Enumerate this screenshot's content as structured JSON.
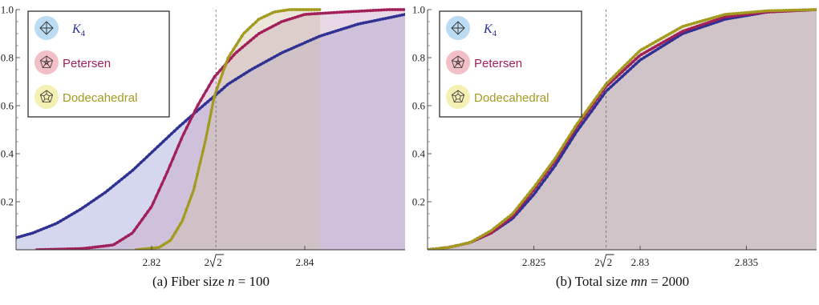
{
  "colors": {
    "K4": "#2f3193",
    "Petersen": "#a2205a",
    "Dodecahedral": "#a39a1f",
    "K4_fill": "#9a9fd6",
    "Petersen_fill": "#c8a2c2",
    "Dodecahedral_fill": "#cfc2a8",
    "K4_badge": "#bcdcf3",
    "Petersen_badge": "#f3bfc6",
    "Dodecahedral_badge": "#f4efb2"
  },
  "legend": {
    "items": [
      {
        "key": "K4",
        "label_main": "K",
        "label_sub": "4",
        "icon": "k4-graph-icon"
      },
      {
        "key": "Petersen",
        "label": "Petersen",
        "icon": "petersen-graph-icon"
      },
      {
        "key": "Dodecahedral",
        "label": "Dodecahedral",
        "icon": "dodecahedral-graph-icon"
      }
    ]
  },
  "chart_data": [
    {
      "type": "area",
      "panel": "a",
      "caption_prefix": "(a)  Fiber size ",
      "caption_var": "n",
      "caption_suffix": " = 100",
      "xlim": [
        2.8023,
        2.8531
      ],
      "ylim": [
        0,
        1.0
      ],
      "xticks": [
        {
          "value": 2.82,
          "label": "2.82"
        },
        {
          "value": 2.84,
          "label": "2.84"
        }
      ],
      "marker": {
        "value": 2.8284,
        "label_prefix": "2",
        "label_radical": "2"
      },
      "yticks": [
        {
          "value": 0.2,
          "label": "0.2"
        },
        {
          "value": 0.4,
          "label": "0.4"
        },
        {
          "value": 0.6,
          "label": "0.6"
        },
        {
          "value": 0.8,
          "label": "0.8"
        },
        {
          "value": 1.0,
          "label": "1.0"
        }
      ],
      "series": [
        {
          "name": "K4",
          "x": [
            2.8023,
            2.8045,
            2.8076,
            2.8108,
            2.814,
            2.8175,
            2.8205,
            2.8235,
            2.826,
            2.8282,
            2.83,
            2.833,
            2.837,
            2.842,
            2.847,
            2.8531
          ],
          "y": [
            0.05,
            0.07,
            0.11,
            0.17,
            0.24,
            0.33,
            0.42,
            0.51,
            0.58,
            0.64,
            0.69,
            0.75,
            0.82,
            0.89,
            0.94,
            0.98
          ]
        },
        {
          "name": "Petersen",
          "x": [
            2.805,
            2.811,
            2.815,
            2.8175,
            2.82,
            2.822,
            2.824,
            2.826,
            2.8282,
            2.831,
            2.834,
            2.837,
            2.84,
            2.845,
            2.851,
            2.8531
          ],
          "y": [
            0.0,
            0.005,
            0.02,
            0.07,
            0.18,
            0.32,
            0.47,
            0.6,
            0.72,
            0.82,
            0.9,
            0.95,
            0.98,
            0.99,
            1.0,
            1.0
          ]
        },
        {
          "name": "Dodecahedral",
          "x": [
            2.818,
            2.821,
            2.8225,
            2.824,
            2.8255,
            2.827,
            2.8282,
            2.83,
            2.832,
            2.834,
            2.836,
            2.838,
            2.842
          ],
          "y": [
            0.0,
            0.01,
            0.04,
            0.12,
            0.25,
            0.45,
            0.64,
            0.8,
            0.9,
            0.96,
            0.99,
            1.0,
            1.0
          ]
        }
      ]
    },
    {
      "type": "area",
      "panel": "b",
      "caption_prefix": "(b)  Total size ",
      "caption_var": "mn",
      "caption_suffix": " = 2000",
      "xlim": [
        2.82,
        2.8383
      ],
      "ylim": [
        0,
        1.0
      ],
      "xticks": [
        {
          "value": 2.825,
          "label": "2.825"
        },
        {
          "value": 2.83,
          "label": "2.83"
        },
        {
          "value": 2.835,
          "label": "2.835"
        }
      ],
      "marker": {
        "value": 2.8284,
        "label_prefix": "2",
        "label_radical": "2"
      },
      "yticks": [
        {
          "value": 0.2,
          "label": "0.2"
        },
        {
          "value": 0.4,
          "label": "0.4"
        },
        {
          "value": 0.6,
          "label": "0.6"
        },
        {
          "value": 0.8,
          "label": "0.8"
        },
        {
          "value": 1.0,
          "label": "1.0"
        }
      ],
      "series": [
        {
          "name": "K4",
          "x": [
            2.82,
            2.821,
            2.822,
            2.823,
            2.824,
            2.825,
            2.826,
            2.827,
            2.8284,
            2.83,
            2.832,
            2.834,
            2.836,
            2.8383
          ],
          "y": [
            0.0,
            0.01,
            0.03,
            0.07,
            0.13,
            0.23,
            0.35,
            0.49,
            0.66,
            0.79,
            0.9,
            0.96,
            0.99,
            1.0
          ]
        },
        {
          "name": "Petersen",
          "x": [
            2.82,
            2.821,
            2.822,
            2.823,
            2.824,
            2.825,
            2.826,
            2.827,
            2.8284,
            2.83,
            2.832,
            2.834,
            2.836,
            2.8383
          ],
          "y": [
            0.0,
            0.01,
            0.03,
            0.07,
            0.14,
            0.25,
            0.37,
            0.51,
            0.68,
            0.81,
            0.91,
            0.97,
            0.99,
            1.0
          ]
        },
        {
          "name": "Dodecahedral",
          "x": [
            2.82,
            2.821,
            2.822,
            2.823,
            2.824,
            2.825,
            2.826,
            2.827,
            2.8284,
            2.83,
            2.832,
            2.834,
            2.836,
            2.8383
          ],
          "y": [
            0.0,
            0.01,
            0.03,
            0.08,
            0.15,
            0.26,
            0.38,
            0.52,
            0.69,
            0.83,
            0.93,
            0.98,
            0.995,
            1.0
          ]
        }
      ]
    }
  ]
}
